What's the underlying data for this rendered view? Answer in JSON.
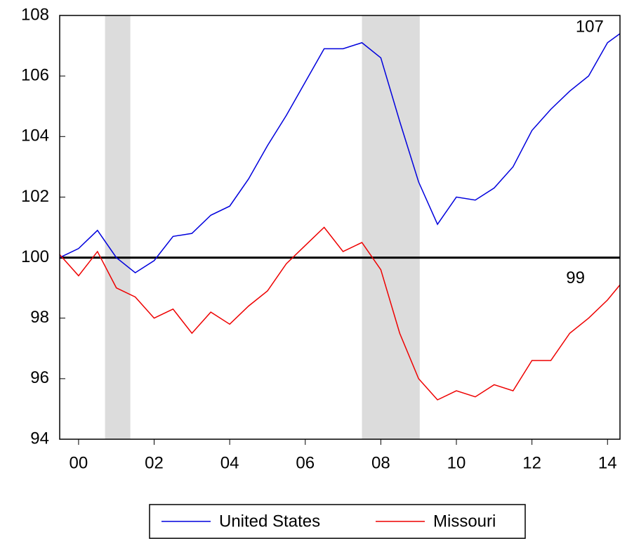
{
  "chart_data": {
    "type": "line",
    "x": [
      2000,
      2000.5,
      2001,
      2001.5,
      2002,
      2002.5,
      2003,
      2003.5,
      2004,
      2004.5,
      2005,
      2005.5,
      2006,
      2006.5,
      2007,
      2007.5,
      2008,
      2008.5,
      2009,
      2009.5,
      2010,
      2010.5,
      2011,
      2011.5,
      2012,
      2012.5,
      2013,
      2013.5,
      2014,
      2014.5,
      2014.83
    ],
    "series": [
      {
        "name": "United States",
        "color": "#0000dd",
        "values": [
          100.0,
          100.3,
          100.9,
          100.0,
          99.5,
          99.9,
          100.7,
          100.8,
          101.4,
          101.7,
          102.6,
          103.7,
          104.7,
          105.8,
          106.9,
          106.9,
          107.1,
          106.6,
          104.5,
          102.5,
          101.1,
          102.0,
          101.9,
          102.3,
          103.0,
          104.2,
          104.9,
          105.5,
          106.0,
          107.1,
          107.4
        ]
      },
      {
        "name": "Missouri",
        "color": "#ee0000",
        "values": [
          100.1,
          99.4,
          100.2,
          99.0,
          98.7,
          98.0,
          98.3,
          97.5,
          98.2,
          97.8,
          98.4,
          98.9,
          99.8,
          100.4,
          101.0,
          100.2,
          100.5,
          99.6,
          97.5,
          96.0,
          95.3,
          95.6,
          95.4,
          95.8,
          95.6,
          96.6,
          96.6,
          97.5,
          98.0,
          98.6,
          99.1
        ]
      }
    ],
    "xlim": [
      2000,
      2014.83
    ],
    "xticks": [
      {
        "value": 2000.5,
        "label": "00"
      },
      {
        "value": 2002.5,
        "label": "02"
      },
      {
        "value": 2004.5,
        "label": "04"
      },
      {
        "value": 2006.5,
        "label": "06"
      },
      {
        "value": 2008.5,
        "label": "08"
      },
      {
        "value": 2010.5,
        "label": "10"
      },
      {
        "value": 2012.5,
        "label": "12"
      },
      {
        "value": 2014.5,
        "label": "14"
      }
    ],
    "ylim": [
      94,
      108
    ],
    "yticks": [
      94,
      96,
      98,
      100,
      102,
      104,
      106,
      108
    ],
    "reference_line": 100,
    "shading": [
      {
        "start": 2001.2,
        "end": 2001.87
      },
      {
        "start": 2008.0,
        "end": 2009.53
      }
    ],
    "annotations": [
      {
        "text": "107",
        "x": 2014.4,
        "y": 107.6
      },
      {
        "text": "99",
        "x": 2013.9,
        "y": 99.3
      }
    ],
    "legend": "bottom"
  }
}
